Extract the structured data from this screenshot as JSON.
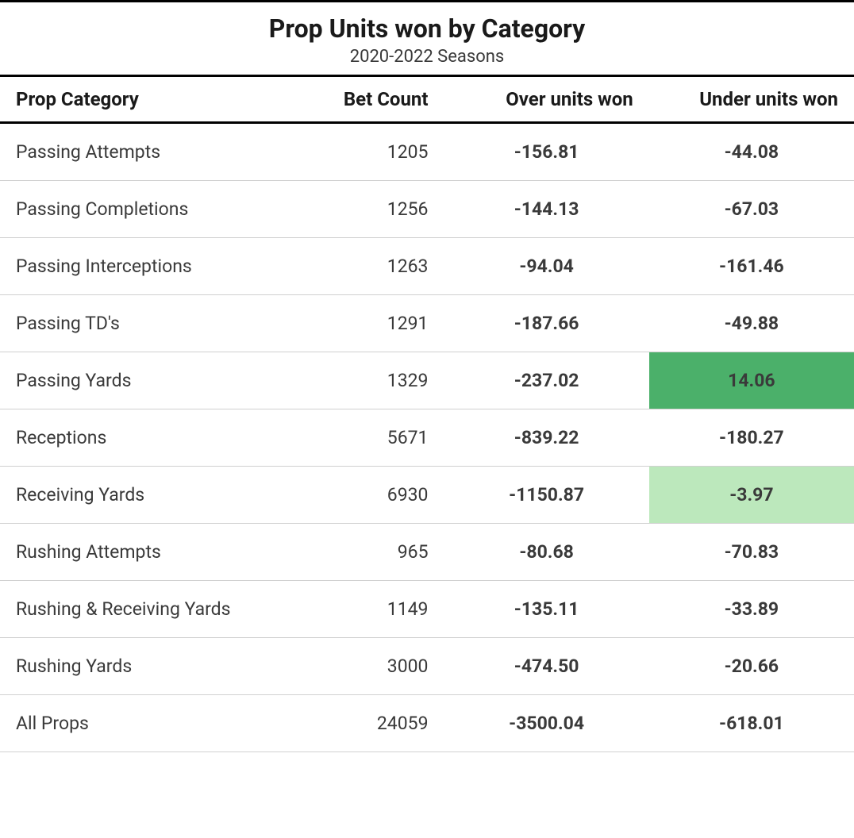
{
  "title": "Prop Units won by Category",
  "subtitle": "2020-2022 Seasons",
  "columns": [
    {
      "label": "Prop Category",
      "class": "col-category"
    },
    {
      "label": "Bet Count",
      "class": "col-betcount"
    },
    {
      "label": "Over units won",
      "class": "col-over"
    },
    {
      "label": "Under units won",
      "class": "col-under"
    }
  ],
  "highlight_colors": {
    "strong_green": "#4bb06a",
    "light_green": "#bce8bc"
  },
  "rows": [
    {
      "category": "Passing Attempts",
      "bet_count": "1205",
      "over": "-156.81",
      "under": "-44.08",
      "under_bg": null
    },
    {
      "category": "Passing Completions",
      "bet_count": "1256",
      "over": "-144.13",
      "under": "-67.03",
      "under_bg": null
    },
    {
      "category": "Passing Interceptions",
      "bet_count": "1263",
      "over": "-94.04",
      "under": "-161.46",
      "under_bg": null
    },
    {
      "category": "Passing TD's",
      "bet_count": "1291",
      "over": "-187.66",
      "under": "-49.88",
      "under_bg": null
    },
    {
      "category": "Passing Yards",
      "bet_count": "1329",
      "over": "-237.02",
      "under": "14.06",
      "under_bg": "strong_green"
    },
    {
      "category": "Receptions",
      "bet_count": "5671",
      "over": "-839.22",
      "under": "-180.27",
      "under_bg": null
    },
    {
      "category": "Receiving Yards",
      "bet_count": "6930",
      "over": "-1150.87",
      "under": "-3.97",
      "under_bg": "light_green"
    },
    {
      "category": "Rushing Attempts",
      "bet_count": "965",
      "over": "-80.68",
      "under": "-70.83",
      "under_bg": null
    },
    {
      "category": "Rushing & Receiving Yards",
      "bet_count": "1149",
      "over": "-135.11",
      "under": "-33.89",
      "under_bg": null
    },
    {
      "category": "Rushing Yards",
      "bet_count": "3000",
      "over": "-474.50",
      "under": "-20.66",
      "under_bg": null
    },
    {
      "category": "All Props",
      "bet_count": "24059",
      "over": "-3500.04",
      "under": "-618.01",
      "under_bg": null
    }
  ],
  "styling": {
    "background_color": "#ffffff",
    "border_color_thick": "#000000",
    "border_color_thin": "#d0d0d0",
    "title_fontsize": 32,
    "subtitle_fontsize": 22,
    "header_fontsize": 24,
    "cell_fontsize": 23,
    "text_color_dark": "#1a1a1a",
    "text_color_body": "#3a3a3a"
  }
}
